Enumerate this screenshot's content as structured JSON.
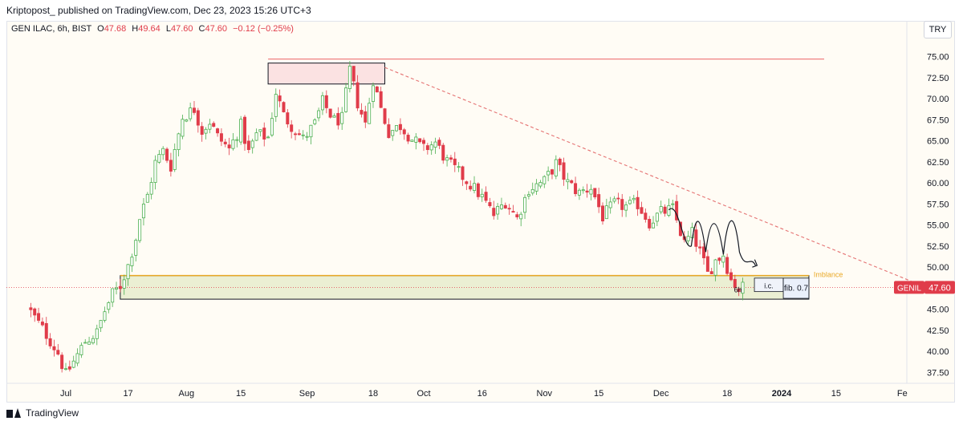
{
  "header": {
    "author": "Kriptopost_",
    "published_text": "published on TradingView.com, Dec 23, 2023 15:26 UTC+3"
  },
  "legend": {
    "symbol": "GEN ILAC, 6h, BIST",
    "o_label": "O",
    "o_value": "47.68",
    "h_label": "H",
    "h_value": "49.64",
    "l_label": "L",
    "l_value": "47.60",
    "c_label": "C",
    "c_value": "47.60",
    "change": "−0.12 (−0.25%)"
  },
  "currency_button": "TRY",
  "footer": {
    "brand": "TradingView"
  },
  "colors": {
    "up": "#4caf50",
    "down": "#e03c4a",
    "hline": "#f08080",
    "zone_fill": "#e7eccd",
    "zone_border": "#e9a825",
    "imbalance_text": "#e9a825"
  },
  "chart_data": {
    "type": "candlestick",
    "title": "GEN ILAC, 6h, BIST",
    "ylim": [
      35.5,
      77.5
    ],
    "y_ticks": [
      "75.00",
      "72.50",
      "70.00",
      "67.50",
      "65.00",
      "62.50",
      "60.00",
      "57.50",
      "55.00",
      "52.50",
      "50.00",
      "47.50",
      "45.00",
      "42.50",
      "40.00",
      "37.50"
    ],
    "x_ticks": [
      {
        "label": "Jul",
        "date": "2023-07-01"
      },
      {
        "label": "17",
        "date": "2023-07-17"
      },
      {
        "label": "Aug",
        "date": "2023-08-01"
      },
      {
        "label": "15",
        "date": "2023-08-15"
      },
      {
        "label": "Sep",
        "date": "2023-09-01"
      },
      {
        "label": "18",
        "date": "2023-09-18"
      },
      {
        "label": "Oct",
        "date": "2023-10-01"
      },
      {
        "label": "16",
        "date": "2023-10-16"
      },
      {
        "label": "Nov",
        "date": "2023-11-01"
      },
      {
        "label": "15",
        "date": "2023-11-15"
      },
      {
        "label": "Dec",
        "date": "2023-12-01"
      },
      {
        "label": "18",
        "date": "2023-12-18"
      },
      {
        "label": "2024",
        "date": "2024-01-01"
      },
      {
        "label": "15",
        "date": "2024-01-15"
      },
      {
        "label": "Fe",
        "date": "2024-02-01"
      }
    ],
    "price_path": [
      {
        "date": "2023-06-22",
        "close": 44.7
      },
      {
        "date": "2023-06-26",
        "close": 42.0
      },
      {
        "date": "2023-06-29",
        "close": 39.8
      },
      {
        "date": "2023-07-01",
        "close": 37.2
      },
      {
        "date": "2023-07-03",
        "close": 38.8
      },
      {
        "date": "2023-07-06",
        "close": 41.2
      },
      {
        "date": "2023-07-09",
        "close": 42.2
      },
      {
        "date": "2023-07-11",
        "close": 44.8
      },
      {
        "date": "2023-07-13",
        "close": 46.8
      },
      {
        "date": "2023-07-15",
        "close": 47.8
      },
      {
        "date": "2023-07-17",
        "close": 50.2
      },
      {
        "date": "2023-07-19",
        "close": 53.5
      },
      {
        "date": "2023-07-20",
        "close": 55.8
      },
      {
        "date": "2023-07-22",
        "close": 58.5
      },
      {
        "date": "2023-07-24",
        "close": 62.4
      },
      {
        "date": "2023-07-26",
        "close": 63.8
      },
      {
        "date": "2023-07-28",
        "close": 62.0
      },
      {
        "date": "2023-07-31",
        "close": 67.8
      },
      {
        "date": "2023-08-03",
        "close": 68.8
      },
      {
        "date": "2023-08-05",
        "close": 66.2
      },
      {
        "date": "2023-08-07",
        "close": 67.3
      },
      {
        "date": "2023-08-09",
        "close": 65.5
      },
      {
        "date": "2023-08-12",
        "close": 64.0
      },
      {
        "date": "2023-08-15",
        "close": 66.8
      },
      {
        "date": "2023-08-17",
        "close": 63.6
      },
      {
        "date": "2023-08-19",
        "close": 65.8
      },
      {
        "date": "2023-08-22",
        "close": 65.4
      },
      {
        "date": "2023-08-24",
        "close": 70.8
      },
      {
        "date": "2023-08-26",
        "close": 68.0
      },
      {
        "date": "2023-08-28",
        "close": 66.8
      },
      {
        "date": "2023-08-31",
        "close": 65.2
      },
      {
        "date": "2023-09-03",
        "close": 67.0
      },
      {
        "date": "2023-09-05",
        "close": 69.6
      },
      {
        "date": "2023-09-08",
        "close": 67.4
      },
      {
        "date": "2023-09-10",
        "close": 67.6
      },
      {
        "date": "2023-09-12",
        "close": 73.4
      },
      {
        "date": "2023-09-14",
        "close": 69.5
      },
      {
        "date": "2023-09-16",
        "close": 67.0
      },
      {
        "date": "2023-09-18",
        "close": 72.3
      },
      {
        "date": "2023-09-20",
        "close": 68.8
      },
      {
        "date": "2023-09-22",
        "close": 66.0
      },
      {
        "date": "2023-09-25",
        "close": 66.8
      },
      {
        "date": "2023-09-28",
        "close": 65.2
      },
      {
        "date": "2023-10-01",
        "close": 64.0
      },
      {
        "date": "2023-10-04",
        "close": 64.8
      },
      {
        "date": "2023-10-07",
        "close": 62.5
      },
      {
        "date": "2023-10-10",
        "close": 61.2
      },
      {
        "date": "2023-10-13",
        "close": 59.8
      },
      {
        "date": "2023-10-16",
        "close": 58.3
      },
      {
        "date": "2023-10-19",
        "close": 56.2
      },
      {
        "date": "2023-10-22",
        "close": 57.8
      },
      {
        "date": "2023-10-25",
        "close": 55.8
      },
      {
        "date": "2023-10-28",
        "close": 59.3
      },
      {
        "date": "2023-11-01",
        "close": 60.2
      },
      {
        "date": "2023-11-04",
        "close": 62.3
      },
      {
        "date": "2023-11-07",
        "close": 60.0
      },
      {
        "date": "2023-11-10",
        "close": 58.8
      },
      {
        "date": "2023-11-13",
        "close": 59.5
      },
      {
        "date": "2023-11-16",
        "close": 56.0
      },
      {
        "date": "2023-11-19",
        "close": 57.5
      },
      {
        "date": "2023-11-22",
        "close": 57.2
      },
      {
        "date": "2023-11-25",
        "close": 57.5
      },
      {
        "date": "2023-11-28",
        "close": 55.3
      },
      {
        "date": "2023-12-01",
        "close": 56.5
      },
      {
        "date": "2023-12-04",
        "close": 56.9
      },
      {
        "date": "2023-12-07",
        "close": 52.8
      },
      {
        "date": "2023-12-09",
        "close": 54.0
      },
      {
        "date": "2023-12-11",
        "close": 51.8
      },
      {
        "date": "2023-12-13",
        "close": 49.2
      },
      {
        "date": "2023-12-15",
        "close": 50.8
      },
      {
        "date": "2023-12-17",
        "close": 51.5
      },
      {
        "date": "2023-12-19",
        "close": 48.5
      },
      {
        "date": "2023-12-21",
        "close": 47.4
      },
      {
        "date": "2023-12-22",
        "close": 47.6
      }
    ],
    "last_price": {
      "label": "GENIL",
      "value": "47.60"
    },
    "annotations": {
      "resistance_line": {
        "price": 74.7
      },
      "supply_box": {
        "price_high": 74.7,
        "price_low": 72.5,
        "date_start": "2023-08-22",
        "date_end": "2023-09-21"
      },
      "trend_line": {
        "date_start": "2023-09-21",
        "price_start": 73.7,
        "date_end": "2024-02-04",
        "price_end": 48.2
      },
      "demand_zone": {
        "price_high": 49.0,
        "price_low": 46.2,
        "date_start": "2023-07-15",
        "date_end": "2024-01-08",
        "label": "Imblance"
      },
      "tag_6h": "6h",
      "tag_ic": "i.c.",
      "tag_fib": "fib. 0.7"
    }
  }
}
